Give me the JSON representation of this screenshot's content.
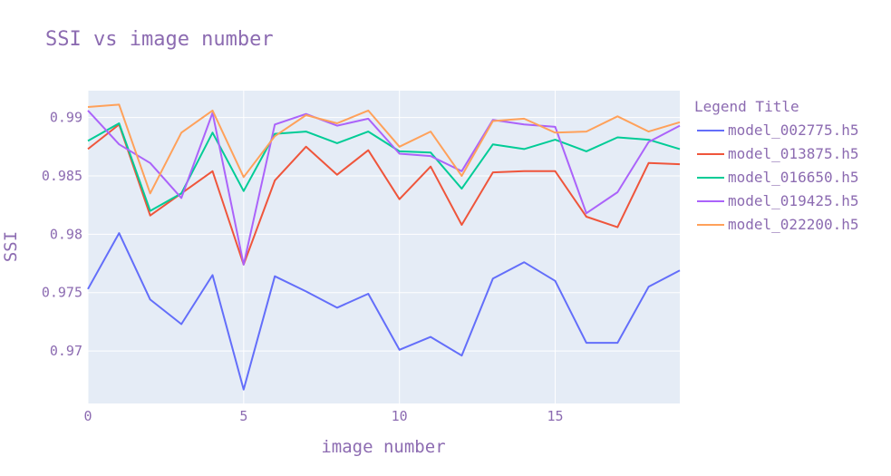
{
  "chart_data": {
    "type": "line",
    "title": "SSI vs image number",
    "xlabel": "image number",
    "ylabel": "SSI",
    "xlim": [
      0,
      19
    ],
    "ylim": [
      0.9655,
      0.9923
    ],
    "xticks": [
      0,
      5,
      10,
      15
    ],
    "yticks": [
      0.97,
      0.975,
      0.98,
      0.985,
      0.99
    ],
    "ytick_labels": [
      "0.97",
      "0.975",
      "0.98",
      "0.985",
      "0.99"
    ],
    "grid": true,
    "legend": {
      "title": "Legend Title",
      "placement": "right"
    },
    "x": [
      0,
      1,
      2,
      3,
      4,
      5,
      6,
      7,
      8,
      9,
      10,
      11,
      12,
      13,
      14,
      15,
      16,
      17,
      18,
      19
    ],
    "series": [
      {
        "name": "model_002775.h5",
        "color": "#636efa",
        "values": [
          0.9753,
          0.9801,
          0.9744,
          0.9723,
          0.9765,
          0.9667,
          0.9764,
          0.9751,
          0.9737,
          0.9749,
          0.9701,
          0.9712,
          0.9696,
          0.9762,
          0.9776,
          0.976,
          0.9707,
          0.9707,
          0.9755,
          0.9769
        ]
      },
      {
        "name": "model_013875.h5",
        "color": "#ef553b",
        "values": [
          0.9873,
          0.9894,
          0.9816,
          0.9835,
          0.9854,
          0.9774,
          0.9846,
          0.9875,
          0.9851,
          0.9872,
          0.983,
          0.9858,
          0.9808,
          0.9853,
          0.9854,
          0.9854,
          0.9815,
          0.9806,
          0.9861,
          0.986
        ]
      },
      {
        "name": "model_016650.h5",
        "color": "#00cc96",
        "values": [
          0.988,
          0.9895,
          0.982,
          0.9835,
          0.9887,
          0.9837,
          0.9886,
          0.9888,
          0.9878,
          0.9888,
          0.9871,
          0.987,
          0.9839,
          0.9877,
          0.9873,
          0.9881,
          0.9871,
          0.9883,
          0.9881,
          0.9873
        ]
      },
      {
        "name": "model_019425.h5",
        "color": "#ab63fa",
        "values": [
          0.9906,
          0.9877,
          0.9861,
          0.9831,
          0.9904,
          0.9774,
          0.9894,
          0.9903,
          0.9893,
          0.9899,
          0.9869,
          0.9867,
          0.9854,
          0.9898,
          0.9894,
          0.9892,
          0.9818,
          0.9836,
          0.9879,
          0.9893
        ]
      },
      {
        "name": "model_022200.h5",
        "color": "#ffa15a",
        "values": [
          0.9909,
          0.9911,
          0.9835,
          0.9887,
          0.9906,
          0.9849,
          0.9884,
          0.9902,
          0.9895,
          0.9906,
          0.9875,
          0.9888,
          0.985,
          0.9897,
          0.9899,
          0.9887,
          0.9888,
          0.9901,
          0.9888,
          0.9896
        ]
      }
    ]
  }
}
